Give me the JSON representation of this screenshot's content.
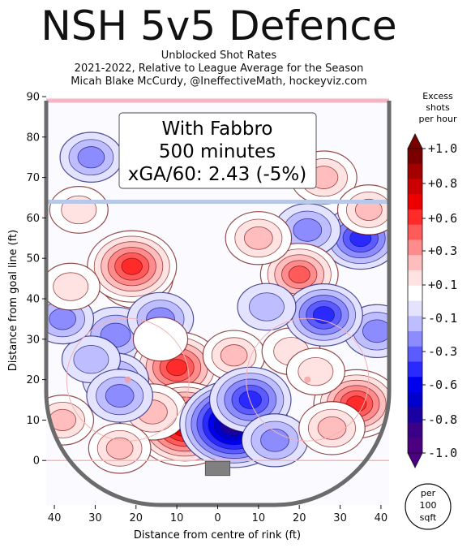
{
  "title": "NSH 5v5 Defence",
  "subtitle_lines": [
    "Unblocked Shot Rates",
    "2021-2022, Relative to League Average for the Season",
    "Micah Blake McCurdy, @IneffectiveMath, hockeyviz.com"
  ],
  "annotation": {
    "lines": [
      "With Fabbro",
      "500 minutes",
      "xGA/60: 2.43 (-5%)"
    ]
  },
  "colorbar": {
    "title_lines": [
      "Excess",
      "shots",
      "per hour"
    ],
    "ticks": [
      "+1.0",
      "+0.8",
      "+0.6",
      "+0.3",
      "+0.1",
      "-0.1",
      "-0.3",
      "-0.6",
      "-0.8",
      "-1.0"
    ],
    "colors": [
      "#7a0000",
      "#a30000",
      "#cc0000",
      "#ee0000",
      "#ff2a2a",
      "#ff5b5b",
      "#ff8c8c",
      "#ffbdbd",
      "#ffe3e3",
      "#ffffff",
      "#e3e3ff",
      "#bdbdff",
      "#8c8cff",
      "#5b5bff",
      "#2a2aff",
      "#0000ee",
      "#0000cc",
      "#1a00a3",
      "#3a0085",
      "#4b0082"
    ],
    "unit_lines": [
      "per",
      "100",
      "sqft"
    ]
  },
  "chart_data": {
    "type": "heatmap",
    "xlabel": "Distance from centre of rink (ft)",
    "ylabel": "Distance from goal line (ft)",
    "xlim": [
      -42,
      42
    ],
    "ylim": [
      -11,
      90
    ],
    "x_ticks": [
      40,
      30,
      20,
      10,
      0,
      10,
      20,
      30,
      40
    ],
    "y_ticks": [
      0,
      10,
      20,
      30,
      40,
      50,
      60,
      70,
      80,
      90
    ],
    "value_range": [
      -1.0,
      1.0
    ],
    "blobs": [
      {
        "x": 35,
        "y": 55,
        "value": -0.45
      },
      {
        "x": 22,
        "y": 57,
        "value": -0.3
      },
      {
        "x": 20,
        "y": 46,
        "value": 0.45
      },
      {
        "x": -20,
        "y": 45,
        "value": 0.4
      },
      {
        "x": -21,
        "y": 48,
        "value": 0.6
      },
      {
        "x": -25,
        "y": 31,
        "value": -0.35
      },
      {
        "x": -14,
        "y": 35,
        "value": -0.3
      },
      {
        "x": 10,
        "y": 55,
        "value": 0.3
      },
      {
        "x": -10,
        "y": 23,
        "value": 0.6
      },
      {
        "x": 4,
        "y": 26,
        "value": 0.25
      },
      {
        "x": 18,
        "y": 27,
        "value": 0.2
      },
      {
        "x": -8,
        "y": 9,
        "value": 0.8
      },
      {
        "x": -16,
        "y": 12,
        "value": 0.35
      },
      {
        "x": -25,
        "y": 20,
        "value": -0.3
      },
      {
        "x": -31,
        "y": 25,
        "value": -0.2
      },
      {
        "x": -38,
        "y": 35,
        "value": -0.25
      },
      {
        "x": -38,
        "y": 10,
        "value": 0.25
      },
      {
        "x": -24,
        "y": 3,
        "value": 0.25
      },
      {
        "x": -24,
        "y": 16,
        "value": -0.3
      },
      {
        "x": -14,
        "y": 30,
        "value": 0.15
      },
      {
        "x": 4,
        "y": 9,
        "value": -0.85
      },
      {
        "x": 8,
        "y": 15,
        "value": -0.5
      },
      {
        "x": 14,
        "y": 5,
        "value": -0.3
      },
      {
        "x": 34,
        "y": 14,
        "value": 0.55
      },
      {
        "x": 28,
        "y": 8,
        "value": 0.3
      },
      {
        "x": 24,
        "y": 22,
        "value": 0.2
      },
      {
        "x": 39,
        "y": 32,
        "value": -0.3
      },
      {
        "x": -31,
        "y": 75,
        "value": -0.25
      },
      {
        "x": 26,
        "y": 70,
        "value": 0.3
      },
      {
        "x": -34,
        "y": 62,
        "value": 0.2
      },
      {
        "x": -36,
        "y": 43,
        "value": 0.2
      },
      {
        "x": 26,
        "y": 36,
        "value": -0.45
      },
      {
        "x": 37,
        "y": 62,
        "value": 0.25
      },
      {
        "x": 12,
        "y": 38,
        "value": -0.2
      }
    ]
  }
}
